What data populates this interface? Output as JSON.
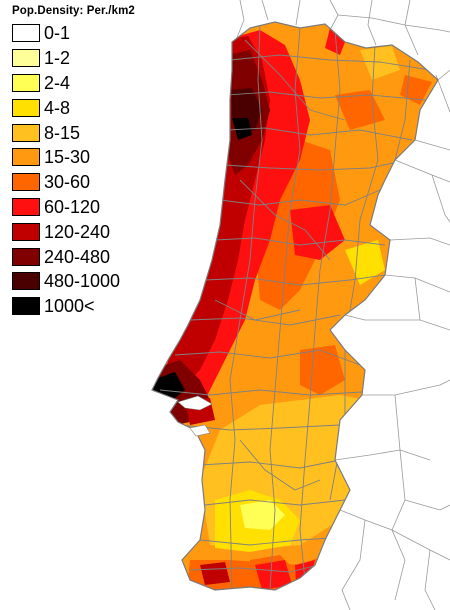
{
  "legend": {
    "title": "Pop.Density: Per./km2",
    "items": [
      {
        "label": "0-1",
        "color": "#ffffff"
      },
      {
        "label": "1-2",
        "color": "#ffff99"
      },
      {
        "label": "2-4",
        "color": "#ffff55"
      },
      {
        "label": "4-8",
        "color": "#ffe000"
      },
      {
        "label": "8-15",
        "color": "#ffc020"
      },
      {
        "label": "15-30",
        "color": "#ff9a10"
      },
      {
        "label": "30-60",
        "color": "#ff6600"
      },
      {
        "label": "60-120",
        "color": "#ff1010"
      },
      {
        "label": "120-240",
        "color": "#c00000"
      },
      {
        "label": "240-480",
        "color": "#800000"
      },
      {
        "label": "480-1000",
        "color": "#4a0000"
      },
      {
        "label": "1000<",
        "color": "#000000"
      }
    ]
  },
  "colors": {
    "background": "#ffffff",
    "municipality_border": "#808080",
    "neighbor_border": "#9a9a9a"
  }
}
